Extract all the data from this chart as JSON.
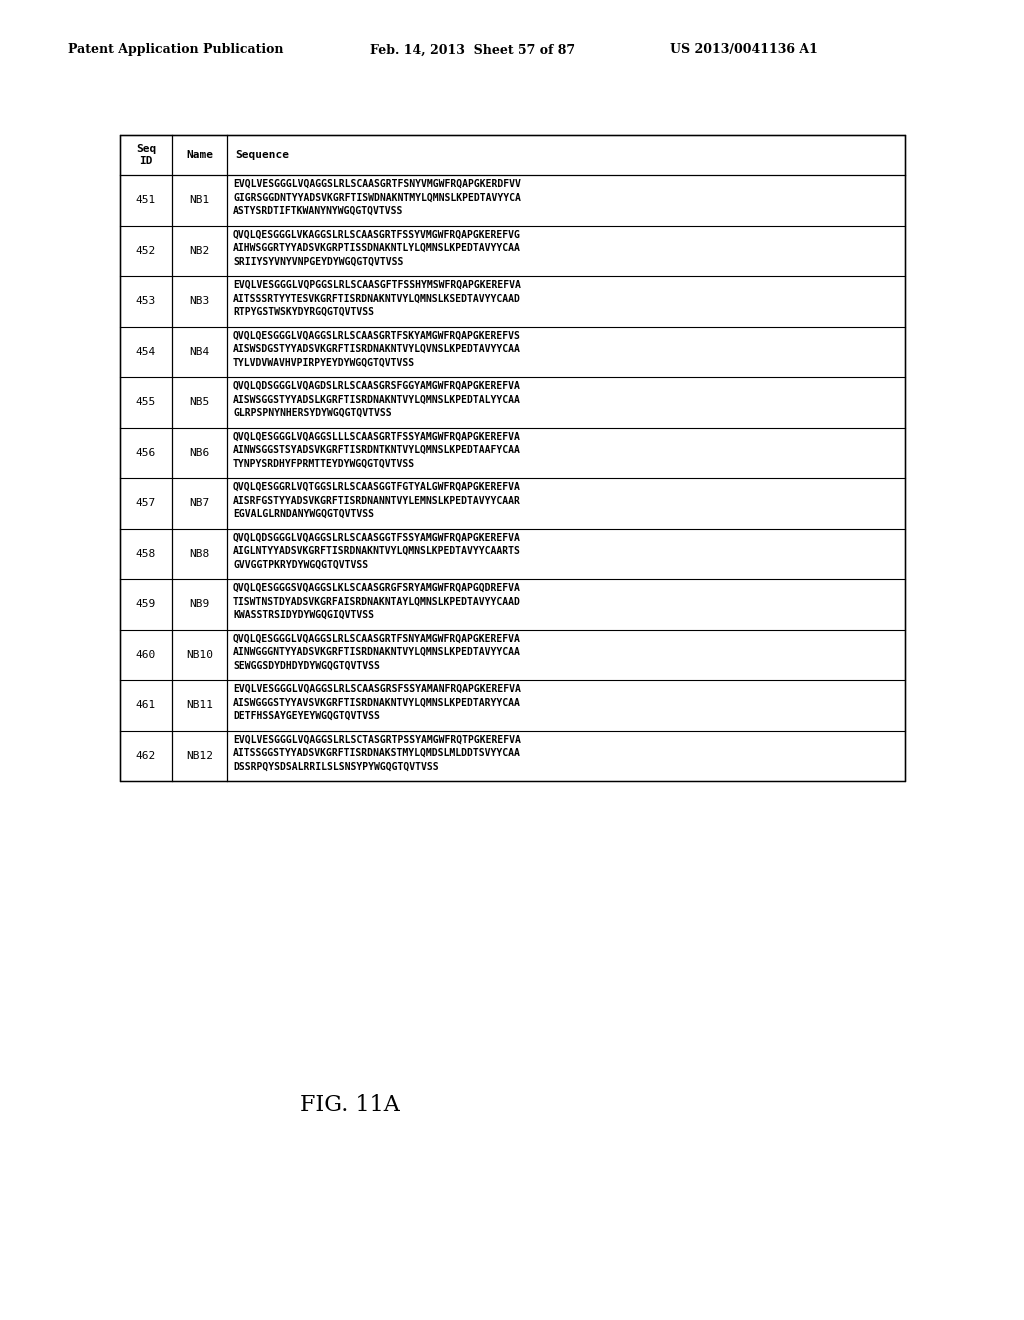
{
  "header_text_left": "Patent Application Publication",
  "header_text_mid": "Feb. 14, 2013  Sheet 57 of 87",
  "header_text_right": "US 2013/0041136 A1",
  "figure_label": "FIG. 11A",
  "background_color": "#ffffff",
  "table": {
    "rows": [
      {
        "seq_id": "451",
        "name": "NB1",
        "sequence": "EVQLVESGGGLVQAGGSLRLSCAASGRTFSNYVMGWFRQAPGKERDFVV\nGIGRSGGDNTYYADSVKGRFTISWDNAKNTMYLQMNSLKPEDTAVYYCA\nASTYSRDTIFTKWANYNYWGQGTQVTVSS"
      },
      {
        "seq_id": "452",
        "name": "NB2",
        "sequence": "QVQLQESGGGLVKAGGSLRLSCAASGRTFSSYVMGWFRQAPGKEREFVG\nAIHWSGGRTYYADSVKGRPTISSDNAKNTLYLQMNSLKPEDTAVYYCAA\nSRIIYSYVNYVNPGEYDYWGQGTQVTVSS"
      },
      {
        "seq_id": "453",
        "name": "NB3",
        "sequence": "EVQLVESGGGLVQPGGSLRLSCAASGFTFSSHYMSWFRQAPGKEREFVA\nAITSSSRTYYTESVKGRFTISRDNAKNTVYLQMNSLKSEDTAVYYCAAD\nRTPYGSTWSKYDYRGQGTQVTVSS"
      },
      {
        "seq_id": "454",
        "name": "NB4",
        "sequence": "QVQLQESGGGLVQAGGSLRLSCAASGRTFSKYAMGWFRQAPGKEREFVS\nAISWSDGSTYYADSVKGRFTISRDNAKNTVYLQVNSLKPEDTAVYYCAA\nTYLVDVWAVHVPIRPYEYDYWGQGTQVTVSS"
      },
      {
        "seq_id": "455",
        "name": "NB5",
        "sequence": "QVQLQDSGGGLVQAGDSLRLSCAASGRSFGGYAMGWFRQAPGKEREFVA\nAISWSGGSTYYADSLKGRFTISRDNAKNTVYLQMNSLKPEDTALYYCAA\nGLRPSPNYNHERSYDYWGQGTQVTVSS"
      },
      {
        "seq_id": "456",
        "name": "NB6",
        "sequence": "QVQLQESGGGLVQAGGSLLLSCAASGRTFSSYAMGWFRQAPGKEREFVA\nAINWSGGSTSYADSVKGRFTISRDNTKNTVYLQMNSLKPEDTAAFYCAA\nTYNPYSRDHYFPRMTTEYDYWGQGTQVTVSS"
      },
      {
        "seq_id": "457",
        "name": "NB7",
        "sequence": "QVQLQESGGRLVQTGGSLRLSCAASGGTFGTYALGWFRQAPGKEREFVA\nAISRFGSTYYADSVKGRFTISRDNANNTVYLEMNSLKPEDTAVYYCAAR\nEGVALGLRNDANYWGQGTQVTVSS"
      },
      {
        "seq_id": "458",
        "name": "NB8",
        "sequence": "QVQLQDSGGGLVQAGGSLRLSCAASGGTFSSYAMGWFRQAPGKEREFVA\nAIGLNTYYADSVKGRFTISRDNAKNTVYLQMNSLKPEDTAVYYCAARTS\nGVVGGTPKRYDYWGQGTQVTVSS"
      },
      {
        "seq_id": "459",
        "name": "NB9",
        "sequence": "QVQLQESGGGSVQAGGSLKLSCAASGRGFSRYAMGWFRQAPGQDREFVA\nTISWTNSTDYADSVKGRFAISRDNAKNTAYLQMNSLKPEDTAVYYCAAD\nKWASSTRSIDYDYWGQGIQVTVSS"
      },
      {
        "seq_id": "460",
        "name": "NB10",
        "sequence": "QVQLQESGGGLVQAGGSLRLSCAASGRTFSNYAMGWFRQAPGKEREFVA\nAINWGGGNTYYADSVKGRFTISRDNAKNTVYLQMNSLKPEDTAVYYCAA\nSEWGGSDYDHDYDYWGQGTQVTVSS"
      },
      {
        "seq_id": "461",
        "name": "NB11",
        "sequence": "EVQLVESGGGLVQAGGSLRLSCAASGRSFSSYAMANFRQAPGKEREFVA\nAISWGGGSTYYAVSVKGRFTISRDNAKNTVYLQMNSLKPEDTARYYCAA\nDETFHSSAYGEYEYWGQGTQVTVSS"
      },
      {
        "seq_id": "462",
        "name": "NB12",
        "sequence": "EVQLVESGGGLVQAGGSLRLSCTASGRTPSSYAMGWFRQTPGKEREFVA\nAITSSGGSTYYADSVKGRFTISRDNAKSTMYLQMDSLMLDDTSVYYCAA\nDSSRPQYSDSALRRILSLSNSYPYWGQGTQVTVSS"
      }
    ]
  }
}
